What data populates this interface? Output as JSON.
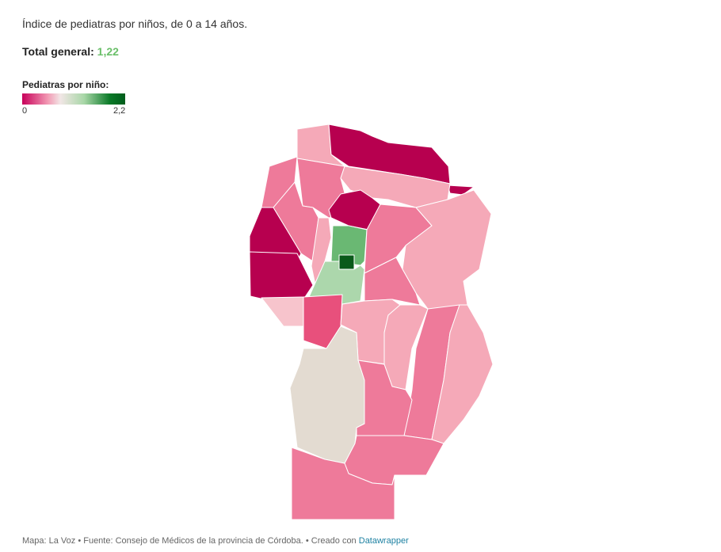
{
  "header": {
    "subtitle": "Índice de pediatras por niños, de 0 a 14 años.",
    "total_label": "Total general:",
    "total_value": "1,22"
  },
  "legend": {
    "title": "Pediatras por niño:",
    "min_label": "0",
    "max_label": "2,2",
    "color_low": "#c8005a",
    "color_mid": "#f2e6e6",
    "color_high": "#005d1c"
  },
  "colors": {
    "very_low": "#b7004f",
    "low": "#e8507c",
    "mid_low": "#ee7a9a",
    "light": "#f5a9b8",
    "very_light": "#f7c4cc",
    "no_data": "#e3dbd1",
    "green_light": "#acd7ac",
    "green_mid": "#6ab873",
    "green_dark": "#0a5a1a"
  },
  "footer": {
    "prefix": "Mapa: La Voz • Fuente: Consejo de Médicos de la provincia de Córdoba. • Creado con",
    "link": "Datawrapper"
  }
}
